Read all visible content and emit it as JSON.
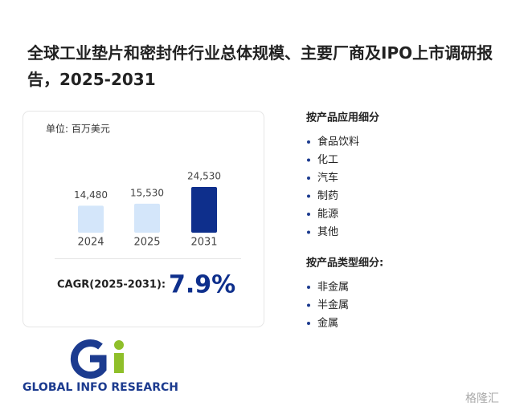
{
  "header": {
    "title": "全球工业垫片和密封件行业总体规模、主要厂商及IPO上市调研报告，2025-2031"
  },
  "chart_data": {
    "type": "bar",
    "unit_label": "单位: 百万美元",
    "categories": [
      "2024",
      "2025",
      "2031"
    ],
    "values": [
      14480,
      15530,
      24530
    ],
    "value_labels": [
      "14,480",
      "15,530",
      "24,530"
    ],
    "colors": [
      "#d4e6fa",
      "#d4e6fa",
      "#0e2f8c"
    ],
    "cagr_label": "CAGR(2025-2031):",
    "cagr": "7.9%"
  },
  "segments": [
    {
      "title": "按产品应用细分",
      "items": [
        "食品饮料",
        "化工",
        "汽车",
        "制药",
        "能源",
        "其他"
      ]
    },
    {
      "title": "按产品类型细分:",
      "items": [
        "非金属",
        "半金属",
        "金属"
      ]
    }
  ],
  "logo": {
    "text": "GLOBAL INFO RESEARCH"
  },
  "watermark": "格隆汇"
}
